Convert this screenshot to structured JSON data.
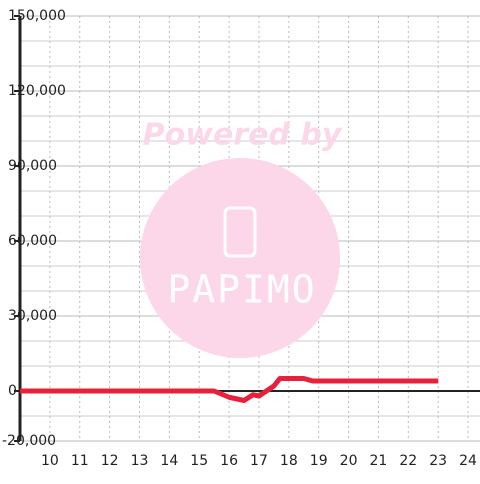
{
  "chart_data": {
    "type": "line",
    "x": [
      9,
      15.5,
      16.0,
      16.5,
      16.8,
      17.0,
      17.5,
      17.7,
      18.5,
      18.8,
      20,
      23
    ],
    "series": [
      {
        "color": "#e8213a",
        "values": [
          0,
          0,
          -2500,
          -3800,
          -1500,
          -2000,
          2000,
          5000,
          5000,
          4000,
          4000,
          4000
        ]
      }
    ],
    "xlim": [
      9,
      24.4
    ],
    "xticks": [
      10,
      11,
      12,
      13,
      14,
      15,
      16,
      17,
      18,
      19,
      20,
      21,
      22,
      23,
      24
    ],
    "ylim": [
      -20000,
      150000
    ],
    "yticks": [
      {
        "value": -20000,
        "label": "-20,000"
      },
      0,
      {
        "value": 30000,
        "label": "30,000"
      },
      {
        "value": 60000,
        "label": "60,000"
      },
      {
        "value": 90000,
        "label": "90,000"
      },
      {
        "value": 120000,
        "label": "120,000"
      },
      {
        "value": 150000,
        "label": "150,000"
      }
    ],
    "yminor_grid": [
      -10000,
      10000,
      20000,
      40000,
      50000,
      70000,
      80000,
      100000,
      110000,
      130000,
      140000
    ],
    "grid": true,
    "watermark": {
      "caption": "Powered by",
      "logo": "PAPIMO"
    }
  }
}
